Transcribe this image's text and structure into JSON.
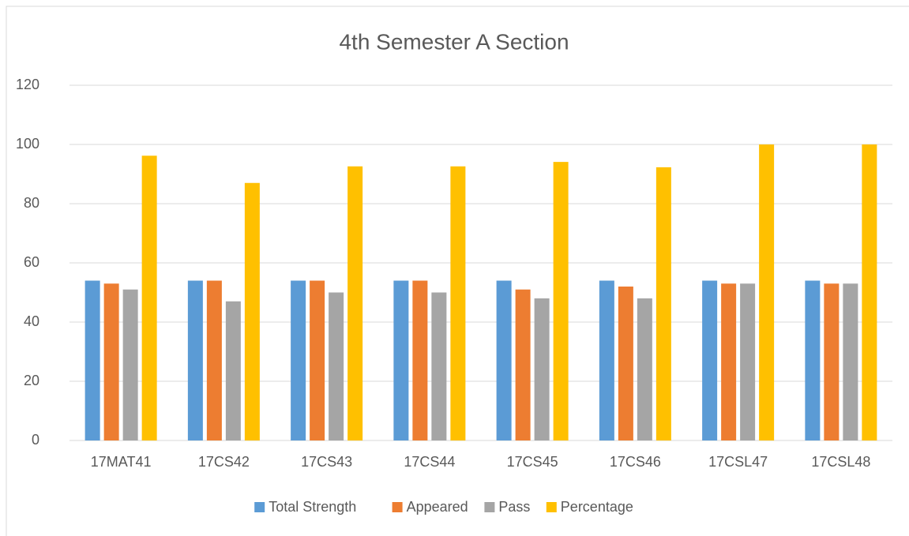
{
  "chart_data": {
    "type": "bar",
    "title": "4th Semester A Section",
    "categories": [
      "17MAT41",
      "17CS42",
      "17CS43",
      "17CS44",
      "17CS45",
      "17CS46",
      "17CSL47",
      "17CSL48"
    ],
    "series": [
      {
        "name": "Total Strength",
        "color": "#5b9bd5",
        "values": [
          54,
          54,
          54,
          54,
          54,
          54,
          54,
          54
        ]
      },
      {
        "name": "Appeared",
        "color": "#ed7d31",
        "values": [
          53,
          54,
          54,
          54,
          51,
          52,
          53,
          53
        ]
      },
      {
        "name": "Pass",
        "color": "#a5a5a5",
        "values": [
          51,
          47,
          50,
          50,
          48,
          48,
          53,
          53
        ]
      },
      {
        "name": "Percentage",
        "color": "#ffc000",
        "values": [
          96.2,
          87,
          92.6,
          92.6,
          94.1,
          92.3,
          100,
          100
        ]
      }
    ],
    "ylim": [
      0,
      120
    ],
    "yticks": [
      0,
      20,
      40,
      60,
      80,
      100,
      120
    ],
    "grid": true,
    "legend": "bottom"
  }
}
